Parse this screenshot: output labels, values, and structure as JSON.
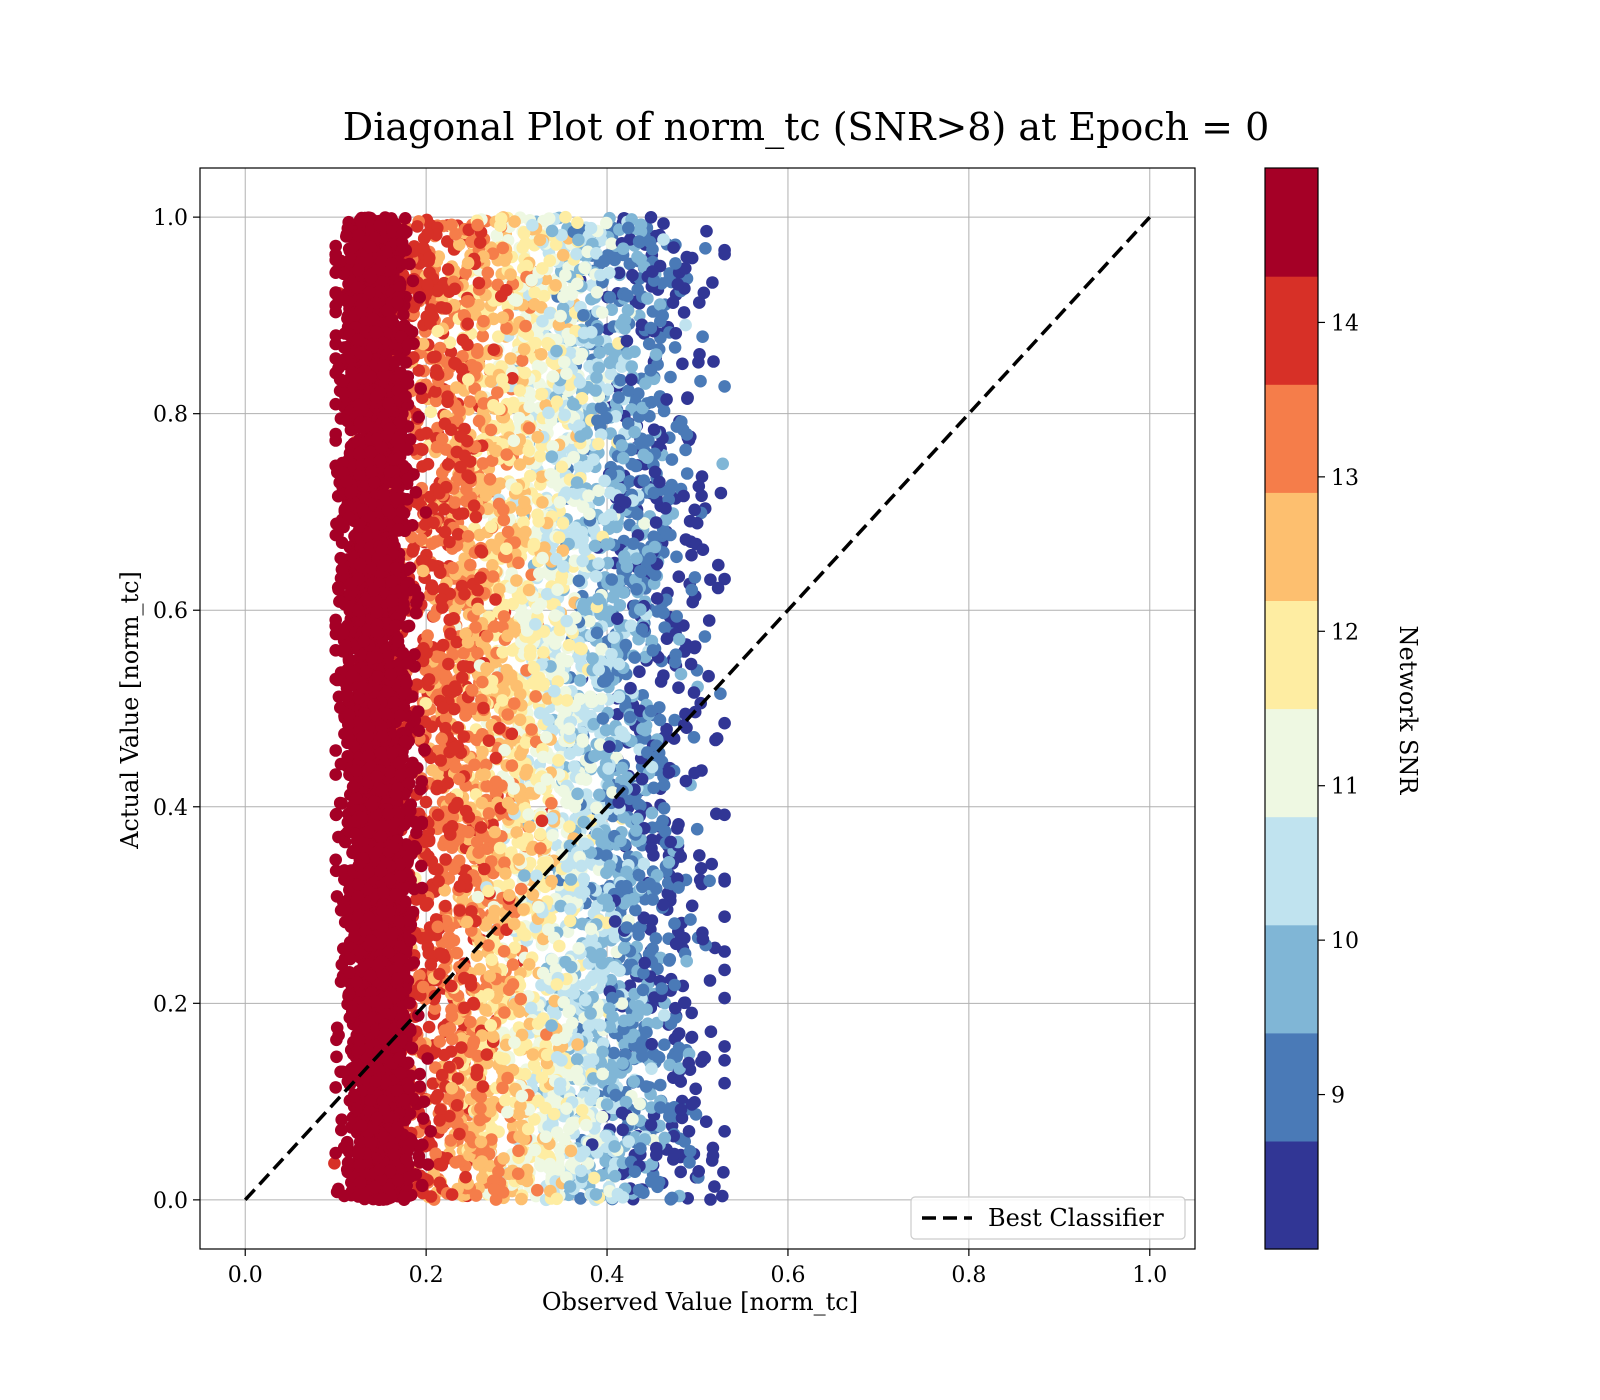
{
  "chart_data": {
    "type": "scatter",
    "title": "Diagonal Plot of norm_tc (SNR>8) at Epoch = 0",
    "xlabel": "Observed Value [norm_tc]",
    "ylabel": "Actual Value [norm_tc]",
    "xlim": [
      -0.05,
      1.05
    ],
    "ylim": [
      -0.05,
      1.05
    ],
    "x_ticks": [
      "0.0",
      "0.2",
      "0.4",
      "0.6",
      "0.8",
      "1.0"
    ],
    "y_ticks": [
      "0.0",
      "0.2",
      "0.4",
      "0.6",
      "0.8",
      "1.0"
    ],
    "grid": true,
    "legend_position": "lower-right",
    "reference_line": {
      "name": "Best Classifier",
      "style": "dashed",
      "color": "#000000",
      "x": [
        0.0,
        1.0
      ],
      "y": [
        0.0,
        1.0
      ]
    },
    "colorbar": {
      "label": "Network SNR",
      "range": [
        8.0,
        15.0
      ],
      "tick_labels": [
        "9",
        "10",
        "11",
        "12",
        "13",
        "14"
      ],
      "bins": [
        {
          "from": 8.0,
          "to": 8.7,
          "color": "#313695"
        },
        {
          "from": 8.7,
          "to": 9.4,
          "color": "#4a7ab7"
        },
        {
          "from": 9.4,
          "to": 10.1,
          "color": "#80b6d6"
        },
        {
          "from": 10.1,
          "to": 10.8,
          "color": "#c0e3ef"
        },
        {
          "from": 10.8,
          "to": 11.5,
          "color": "#eef8e2"
        },
        {
          "from": 11.5,
          "to": 12.2,
          "color": "#feeda2"
        },
        {
          "from": 12.2,
          "to": 12.9,
          "color": "#fdbf6f"
        },
        {
          "from": 12.9,
          "to": 13.6,
          "color": "#f57d4a"
        },
        {
          "from": 13.6,
          "to": 14.3,
          "color": "#d73027"
        },
        {
          "from": 14.3,
          "to": 15.0,
          "color": "#a50026"
        }
      ]
    },
    "points": {
      "x_range": [
        0.09,
        0.53
      ],
      "y_range": [
        0.0,
        1.0
      ],
      "trend": "observed value decreases as network SNR increases; highest SNR points cluster near observed 0.10-0.19"
    }
  }
}
